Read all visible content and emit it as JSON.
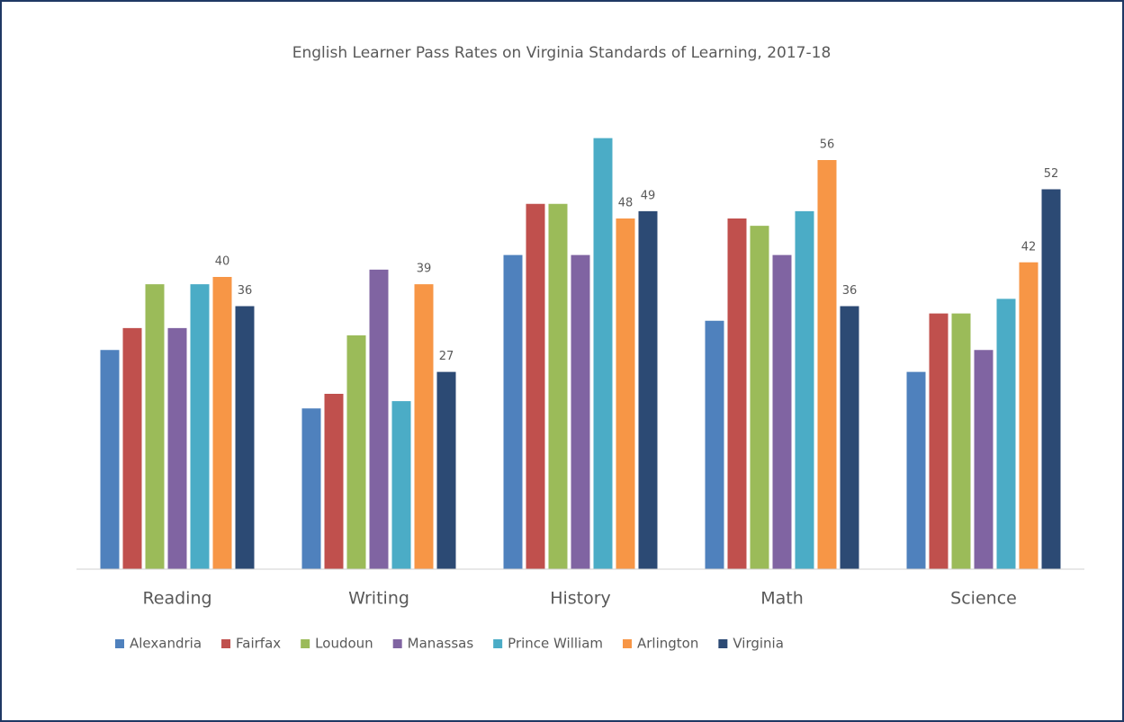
{
  "chart_data": {
    "type": "bar",
    "title": "English Learner Pass Rates on Virginia Standards of Learning, 2017-18",
    "categories": [
      "Reading",
      "Writing",
      "History",
      "Math",
      "Science"
    ],
    "series": [
      {
        "name": "Alexandria",
        "color": "#4f81bd",
        "values": [
          30,
          22,
          43,
          34,
          27
        ]
      },
      {
        "name": "Fairfax",
        "color": "#c0504d",
        "values": [
          33,
          24,
          50,
          48,
          35
        ]
      },
      {
        "name": "Loudoun",
        "color": "#9bbb59",
        "values": [
          39,
          32,
          50,
          47,
          35
        ]
      },
      {
        "name": "Manassas",
        "color": "#8064a2",
        "values": [
          33,
          41,
          43,
          43,
          30
        ]
      },
      {
        "name": "Prince William",
        "color": "#4bacc6",
        "values": [
          39,
          23,
          59,
          49,
          37
        ]
      },
      {
        "name": "Arlington",
        "color": "#f79646",
        "values": [
          40,
          39,
          48,
          56,
          42
        ],
        "data_labels": true
      },
      {
        "name": "Virginia",
        "color": "#2c4a74",
        "values": [
          36,
          27,
          49,
          36,
          52
        ],
        "data_labels": true
      }
    ],
    "ylim": [
      0,
      60
    ],
    "legend": "bottom"
  }
}
